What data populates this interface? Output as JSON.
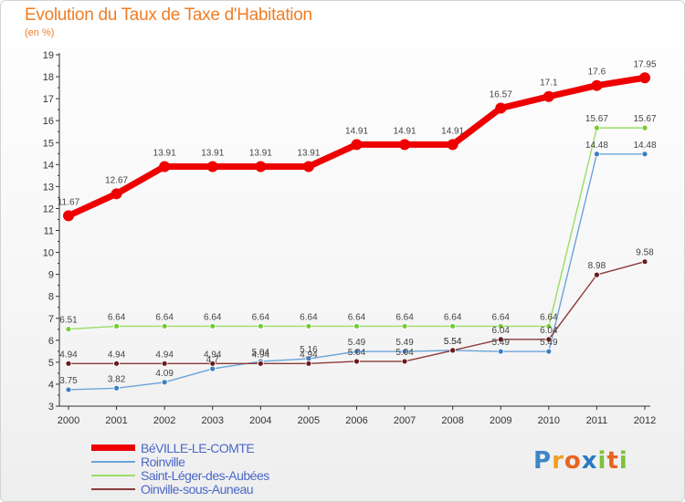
{
  "title": "Evolution du Taux de Taxe d'Habitation",
  "subtitle": "(en %)",
  "logo": {
    "text": "Proxiti",
    "letters": [
      {
        "ch": "P",
        "color": "#3a86c8"
      },
      {
        "ch": "r",
        "color": "#f0a020"
      },
      {
        "ch": "o",
        "color": "#e8641e"
      },
      {
        "ch": "x",
        "color": "#2a7ac0"
      },
      {
        "ch": "i",
        "color": "#7dc23a"
      },
      {
        "ch": "t",
        "color": "#e8641e"
      },
      {
        "ch": "i",
        "color": "#7dc23a"
      }
    ]
  },
  "chart_data": {
    "type": "line",
    "title": "Evolution du Taux de Taxe d'Habitation",
    "ylabel": "(en %)",
    "xlabel": "",
    "ylim": [
      3,
      19
    ],
    "yticks": [
      "3",
      "4",
      "5",
      "6",
      "7",
      "8",
      "9",
      "10",
      "11",
      "12",
      "13",
      "14",
      "15",
      "16",
      "17",
      "18",
      "19"
    ],
    "x": [
      "2000",
      "2001",
      "2002",
      "2003",
      "2004",
      "2005",
      "2006",
      "2007",
      "2008",
      "2009",
      "2010",
      "2011",
      "2012"
    ],
    "series": [
      {
        "name": "BéVILLE-LE-COMTE",
        "color": "#ee0000",
        "emphasis": true,
        "values": [
          11.67,
          12.67,
          13.91,
          13.91,
          13.91,
          13.91,
          14.91,
          14.91,
          14.91,
          16.57,
          17.1,
          17.6,
          17.95
        ],
        "labels": [
          "11.67",
          "12.67",
          "13.91",
          "13.91",
          "13.91",
          "13.91",
          "14.91",
          "14.91",
          "14.91",
          "16.57",
          "17.1",
          "17.6",
          "17.95"
        ]
      },
      {
        "name": "Roinville",
        "color": "#6aa4d8",
        "point_color": "#3a7fc4",
        "emphasis": false,
        "values": [
          3.75,
          3.82,
          4.09,
          4.7,
          5.04,
          5.16,
          5.49,
          5.49,
          5.54,
          5.49,
          5.49,
          14.48,
          14.48
        ],
        "labels": [
          "3.75",
          "3.82",
          "4.09",
          "4.7",
          "5.04",
          "5.16",
          "5.49",
          "5.49",
          "5.54",
          "5.49",
          "5.49",
          "14.48",
          "14.48"
        ]
      },
      {
        "name": "Saint-Léger-des-Aubées",
        "color": "#99dd66",
        "point_color": "#77cc33",
        "emphasis": false,
        "values": [
          6.51,
          6.64,
          6.64,
          6.64,
          6.64,
          6.64,
          6.64,
          6.64,
          6.64,
          6.64,
          6.64,
          15.67,
          15.67
        ],
        "labels": [
          "6.51",
          "6.64",
          "6.64",
          "6.64",
          "6.64",
          "6.64",
          "6.64",
          "6.64",
          "6.64",
          "6.64",
          "6.64",
          "15.67",
          "15.67"
        ]
      },
      {
        "name": "Oinville-sous-Auneau",
        "color": "#8b3a3a",
        "point_color": "#6a1a1a",
        "emphasis": false,
        "values": [
          4.94,
          4.94,
          4.94,
          4.94,
          4.94,
          4.94,
          5.04,
          5.04,
          5.54,
          6.04,
          6.04,
          8.98,
          9.58
        ],
        "labels": [
          "4.94",
          "4.94",
          "4.94",
          "4.94",
          "4.94",
          "4.94",
          "5.04",
          "5.04",
          "5.54",
          "6.04",
          "6.04",
          "8.98",
          "9.58"
        ]
      }
    ],
    "legend_position": "bottom-left",
    "grid": false
  }
}
